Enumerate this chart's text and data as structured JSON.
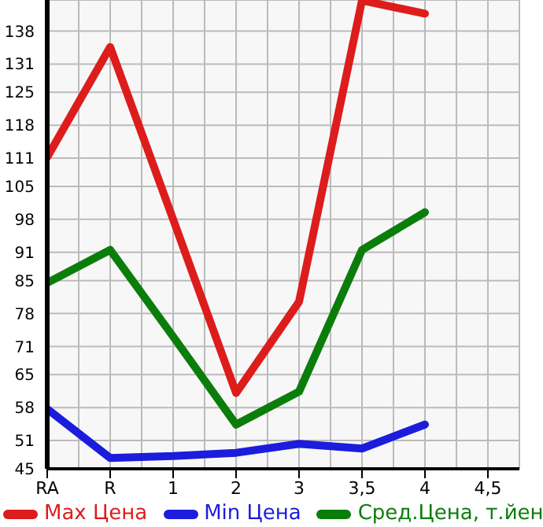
{
  "chart_data": {
    "type": "line",
    "categories": [
      "RA",
      "R",
      "1",
      "2",
      "3",
      "3,5",
      "4",
      "4,5"
    ],
    "series": [
      {
        "name": "Max Цена",
        "color": "#dd1c1c",
        "values": [
          111.2,
          134.6,
          98,
          61.1,
          80.5,
          144.5,
          141.7,
          null
        ]
      },
      {
        "name": "Min Цена",
        "color": "#1c1cdd",
        "values": [
          57.7,
          47.3,
          47.7,
          48.4,
          50.3,
          49.3,
          54.4,
          null
        ]
      },
      {
        "name": "Сред.Цена, т.йен",
        "color": "#0b7d0b",
        "values": [
          84.5,
          91.5,
          73.1,
          54.4,
          61.4,
          91.5,
          99.5,
          null
        ]
      }
    ],
    "ylim": [
      45,
      144.6
    ],
    "yticks": [
      45,
      51,
      58,
      65,
      71,
      78,
      85,
      91,
      98,
      105,
      111,
      118,
      125,
      131,
      138
    ],
    "grid": true,
    "legend": "bottom",
    "marker": "none",
    "line_style": "solid"
  }
}
